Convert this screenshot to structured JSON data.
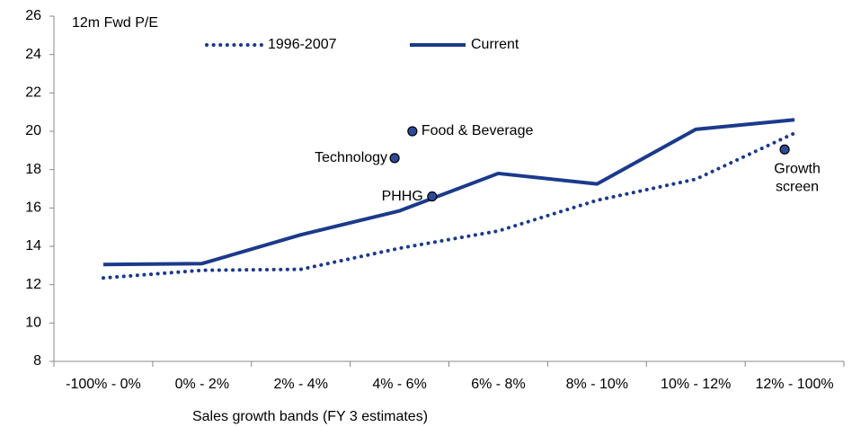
{
  "chart_data": {
    "type": "line",
    "y_axis_title": "12m Fwd P/E",
    "x_axis_title": "Sales growth bands (FY 3 estimates)",
    "categories": [
      "-100% - 0%",
      "0% - 2%",
      "2% - 4%",
      "4% - 6%",
      "6% - 8%",
      "8% - 10%",
      "10% - 12%",
      "12% - 100%"
    ],
    "series": [
      {
        "name": "1996-2007",
        "color": "#1b3a8c",
        "dash": "dotted",
        "values": [
          12.35,
          12.75,
          12.8,
          13.9,
          14.8,
          16.4,
          17.5,
          19.9
        ]
      },
      {
        "name": "Current",
        "color": "#1b3a8c",
        "dash": "solid",
        "values": [
          13.05,
          13.1,
          14.6,
          15.85,
          17.8,
          17.25,
          20.1,
          20.6
        ]
      }
    ],
    "points": [
      {
        "name": "Technology",
        "x": 2.95,
        "y": 18.6
      },
      {
        "name": "Food & Beverage",
        "x": 3.13,
        "y": 20.0
      },
      {
        "name": "PHHG",
        "x": 3.33,
        "y": 16.6
      },
      {
        "name": "Growth screen",
        "x": 6.9,
        "y": 19.05
      }
    ],
    "ylim": [
      8,
      26
    ],
    "yticks": [
      8,
      10,
      12,
      14,
      16,
      18,
      20,
      22,
      24,
      26
    ],
    "grid": false
  }
}
